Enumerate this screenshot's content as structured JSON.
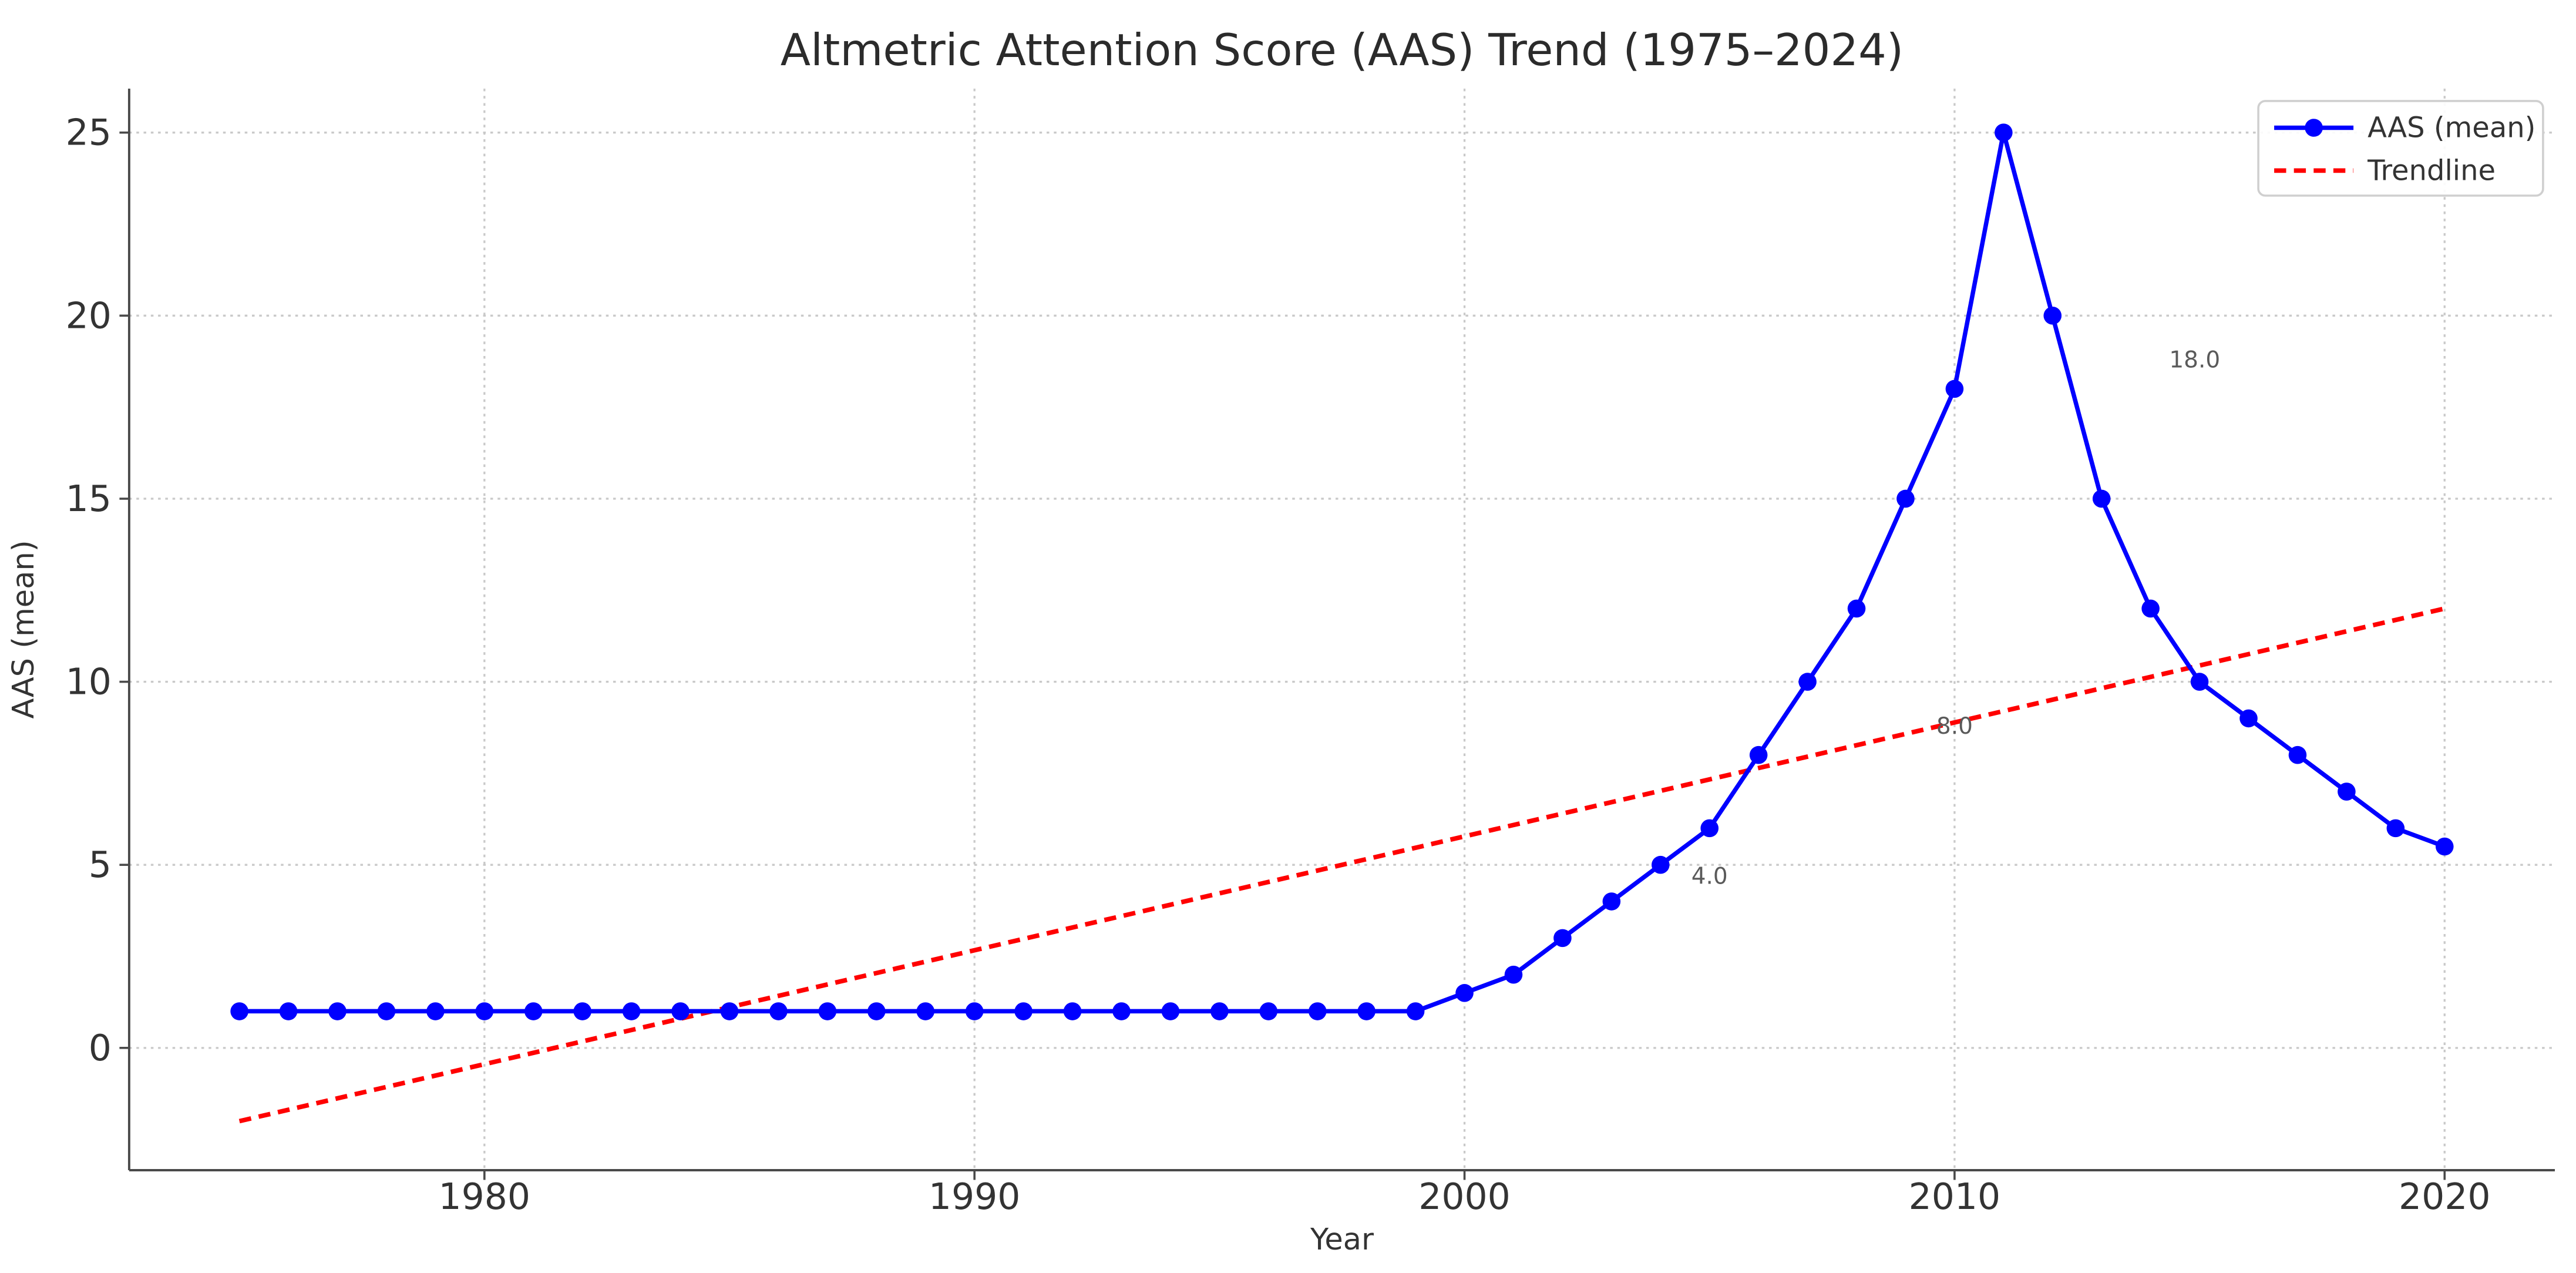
{
  "chart_data": {
    "type": "line",
    "title": "Altmetric Attention Score (AAS) Trend (1975–2024)",
    "xlabel": "Year",
    "ylabel": "AAS (mean)",
    "x_ticks": [
      1980,
      1990,
      2000,
      2010,
      2020
    ],
    "y_ticks": [
      0,
      5,
      10,
      15,
      20,
      25
    ],
    "xlim": [
      1972.75,
      2022.25
    ],
    "ylim": [
      -3.34,
      26.2
    ],
    "grid": "dotted",
    "legend_position": "upper right",
    "colors": {
      "aas_line": "#0000ff",
      "trendline": "#ff0000",
      "grid": "#c9c9c9",
      "spine": "#4a4a4a",
      "annotation": "#5a5a5a"
    },
    "series": [
      {
        "name": "AAS (mean)",
        "style": "solid-with-circle-markers",
        "color": "#0000ff",
        "x": [
          1975,
          1976,
          1977,
          1978,
          1979,
          1980,
          1981,
          1982,
          1983,
          1984,
          1985,
          1986,
          1987,
          1988,
          1989,
          1990,
          1991,
          1992,
          1993,
          1994,
          1995,
          1996,
          1997,
          1998,
          1999,
          2000,
          2001,
          2002,
          2003,
          2004,
          2005,
          2006,
          2007,
          2008,
          2009,
          2010,
          2011,
          2012,
          2013,
          2014,
          2015,
          2016,
          2017,
          2018,
          2019,
          2020
        ],
        "y": [
          1,
          1,
          1,
          1,
          1,
          1,
          1,
          1,
          1,
          1,
          1,
          1,
          1,
          1,
          1,
          1,
          1,
          1,
          1,
          1,
          1,
          1,
          1,
          1,
          1,
          1.5,
          2,
          3,
          4,
          5,
          6,
          8,
          10,
          12,
          15,
          18,
          25,
          20,
          15,
          12,
          10,
          9,
          8,
          7,
          6,
          5.5
        ]
      },
      {
        "name": "Trendline",
        "style": "dashed",
        "color": "#ff0000",
        "x": [
          1975,
          2020
        ],
        "y": [
          -2.0,
          12.0
        ]
      }
    ],
    "annotations": [
      {
        "text": "4.0",
        "x": 2005.0,
        "y": 4.7
      },
      {
        "text": "8.0",
        "x": 2010.0,
        "y": 8.8
      },
      {
        "text": "18.0",
        "x": 2014.9,
        "y": 18.8
      }
    ]
  }
}
